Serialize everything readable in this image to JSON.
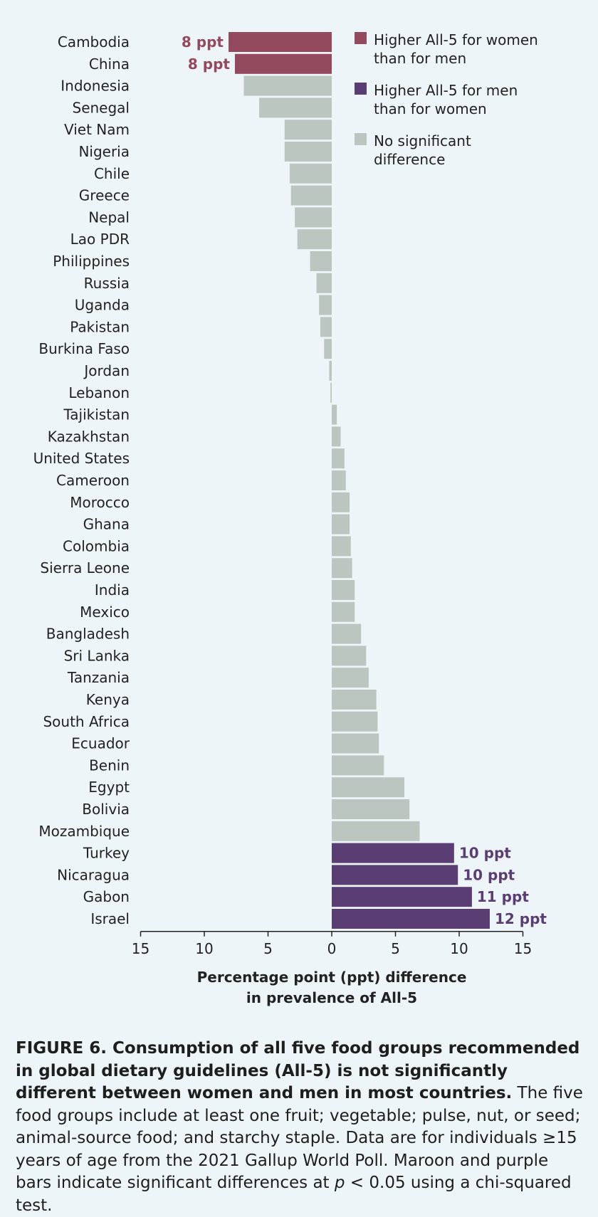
{
  "chart_data": {
    "type": "bar",
    "orientation": "horizontal",
    "categories": [
      "Cambodia",
      "China",
      "Indonesia",
      "Senegal",
      "Viet Nam",
      "Nigeria",
      "Chile",
      "Greece",
      "Nepal",
      "Lao PDR",
      "Philippines",
      "Russia",
      "Uganda",
      "Pakistan",
      "Burkina Faso",
      "Jordan",
      "Lebanon",
      "Tajikistan",
      "Kazakhstan",
      "United States",
      "Cameroon",
      "Morocco",
      "Ghana",
      "Colombia",
      "Sierra Leone",
      "India",
      "Mexico",
      "Bangladesh",
      "Sri Lanka",
      "Tanzania",
      "Kenya",
      "South Africa",
      "Ecuador",
      "Benin",
      "Egypt",
      "Bolivia",
      "Mozambique",
      "Turkey",
      "Nicaragua",
      "Gabon",
      "Israel"
    ],
    "values": [
      -8.1,
      -7.6,
      -6.9,
      -5.7,
      -3.7,
      -3.7,
      -3.3,
      -3.2,
      -2.9,
      -2.7,
      -1.7,
      -1.2,
      -1.0,
      -0.9,
      -0.6,
      -0.2,
      -0.1,
      0.4,
      0.7,
      1.0,
      1.1,
      1.4,
      1.4,
      1.5,
      1.6,
      1.8,
      1.8,
      2.3,
      2.7,
      2.9,
      3.5,
      3.6,
      3.7,
      4.1,
      5.7,
      6.1,
      6.9,
      9.6,
      9.9,
      11.0,
      12.4
    ],
    "groups": [
      "women",
      "women",
      "ns",
      "ns",
      "ns",
      "ns",
      "ns",
      "ns",
      "ns",
      "ns",
      "ns",
      "ns",
      "ns",
      "ns",
      "ns",
      "ns",
      "ns",
      "ns",
      "ns",
      "ns",
      "ns",
      "ns",
      "ns",
      "ns",
      "ns",
      "ns",
      "ns",
      "ns",
      "ns",
      "ns",
      "ns",
      "ns",
      "ns",
      "ns",
      "ns",
      "ns",
      "ns",
      "men",
      "men",
      "men",
      "men"
    ],
    "data_labels": [
      "8 ppt",
      "8 ppt",
      "",
      "",
      "",
      "",
      "",
      "",
      "",
      "",
      "",
      "",
      "",
      "",
      "",
      "",
      "",
      "",
      "",
      "",
      "",
      "",
      "",
      "",
      "",
      "",
      "",
      "",
      "",
      "",
      "",
      "",
      "",
      "",
      "",
      "",
      "",
      "10 ppt",
      "10 ppt",
      "11 ppt",
      "12 ppt"
    ],
    "xlim": [
      -15,
      15
    ],
    "x_ticks": [
      -15,
      -10,
      -5,
      0,
      5,
      10,
      15
    ],
    "x_tick_labels": [
      "15",
      "10",
      "5",
      "0",
      "5",
      "10",
      "15"
    ],
    "xlabel_line1": "Percentage point (ppt) difference",
    "xlabel_line2": "in prevalence of All-5",
    "legend": [
      {
        "group": "women",
        "line1": "Higher All-5 for women",
        "line2": "than for men"
      },
      {
        "group": "men",
        "line1": "Higher All-5 for men",
        "line2": "than for women"
      },
      {
        "group": "ns",
        "line1": "No significant",
        "line2": "difference"
      }
    ],
    "legend_position": "top-right",
    "colors": {
      "women": "#944a5e",
      "men": "#5a3d72",
      "ns": "#bcc6c1"
    },
    "grid": false
  },
  "caption": {
    "bold": "FIGURE 6. Consumption of all five food groups recommended in global dietary guidelines (All-5) is not significantly different between women and men in most countries.",
    "text": " The five food groups include at least one fruit; vegetable; pulse, nut, or seed; animal-source food; and starchy staple. Data are for individuals ≥15 years of age from the 2021 Gallup World Poll. Maroon and purple bars indicate significant differences at ",
    "p_symbol": "p",
    "text_end": " < 0.05 using a chi-squared test."
  }
}
